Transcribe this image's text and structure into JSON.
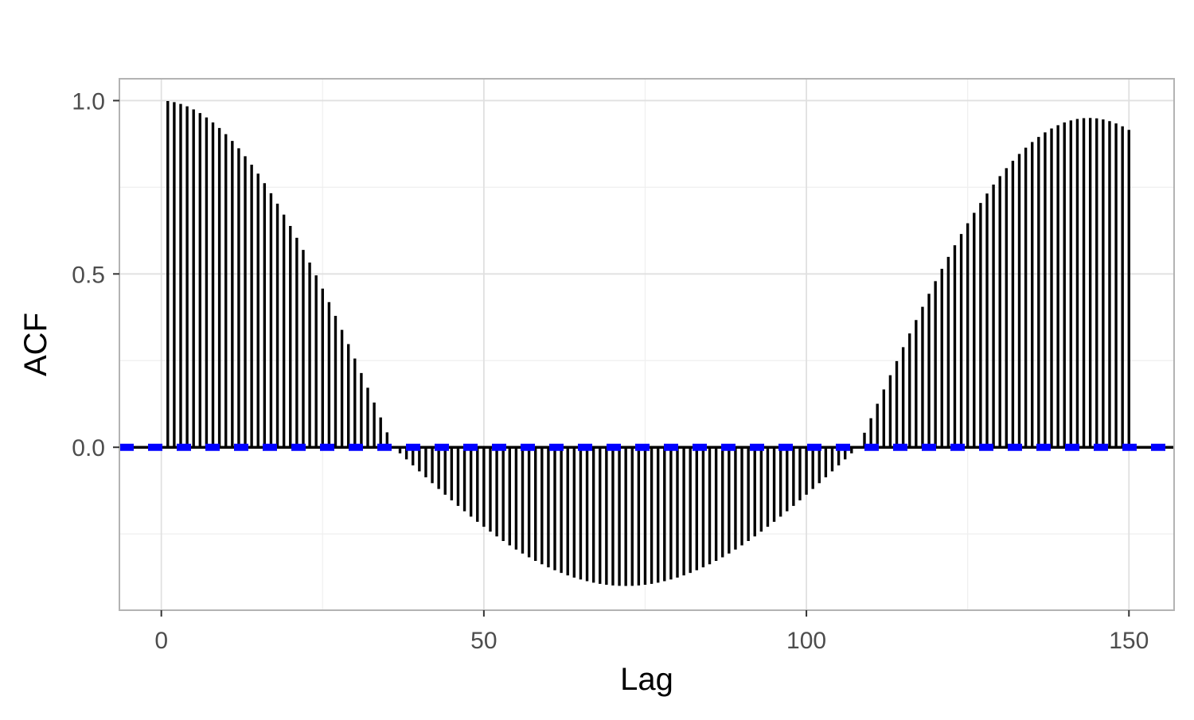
{
  "chart_data": {
    "type": "bar",
    "subtype": "acf-lollipop",
    "title": "",
    "xlabel": "Lag",
    "ylabel": "ACF",
    "xlim": [
      -6.5,
      157
    ],
    "ylim": [
      -0.47,
      1.063
    ],
    "x_ticks": [
      0,
      50,
      100,
      150
    ],
    "x_tick_labels": [
      "0",
      "50",
      "100",
      "150"
    ],
    "y_ticks": [
      0.0,
      0.5,
      1.0
    ],
    "y_tick_labels": [
      "0.0",
      "0.5",
      "1.0"
    ],
    "y_minor_grid": [
      -0.25,
      0.25,
      0.75
    ],
    "x_minor_grid": [
      25,
      75,
      125
    ],
    "grid": true,
    "legend": "none",
    "lags": [
      1,
      150
    ],
    "acf_model": {
      "description": "values = amplitude-decayed cosine",
      "period": 144,
      "peak_at_lag_144": 0.95,
      "trough_at_lag_72": -0.4
    },
    "reference_lines": [
      {
        "y": 0.0,
        "style": "solid",
        "color": "#000000"
      },
      {
        "y": 0.0,
        "style": "dashed",
        "color": "#0000ff"
      }
    ],
    "colors": {
      "bars": "#000000",
      "dashed_line": "#0000ff",
      "panel_border": "#b3b3b3",
      "grid_major": "#e0e0e0",
      "grid_minor": "#efefef"
    }
  }
}
